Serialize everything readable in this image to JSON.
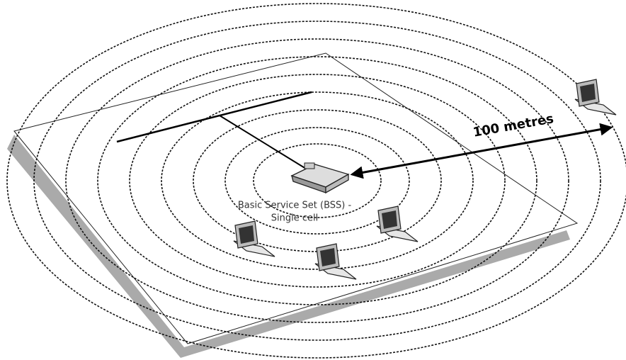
{
  "diagram": {
    "distance_label": "100 metres",
    "bss_label": "Basic Service Set (BSS) -",
    "cell_label": "Single cell"
  }
}
